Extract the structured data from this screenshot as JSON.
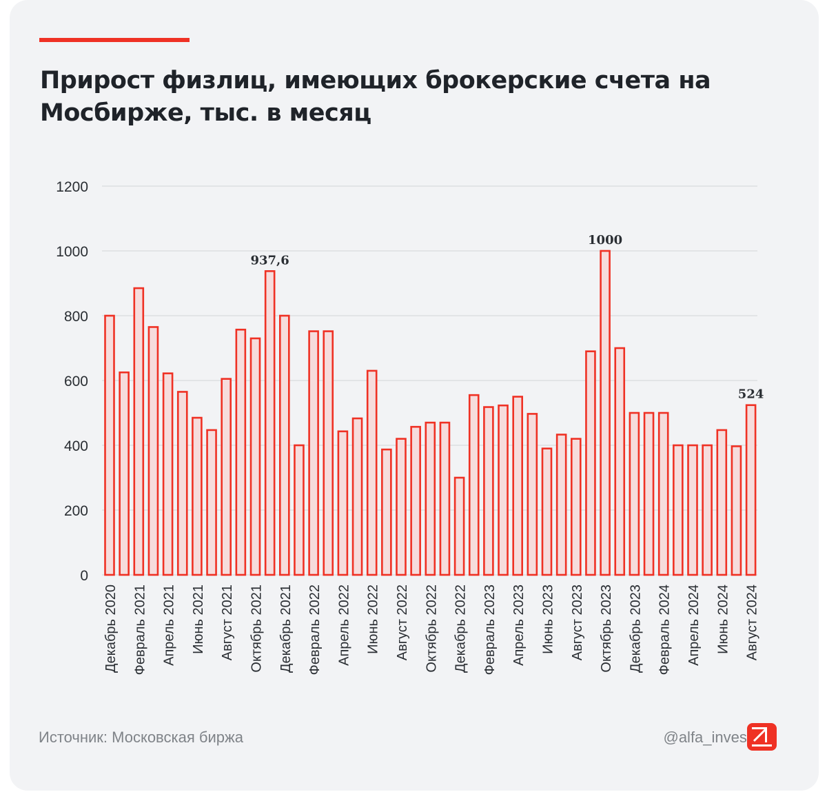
{
  "title": "Прирост физлиц, имеющих брокерские счета на Мосбирже, тыс. в месяц",
  "footer": {
    "source": "Источник: Московская биржа",
    "handle": "@alfa_invest"
  },
  "colors": {
    "accent": "#ef3124",
    "bar_fill": "#f6dcdc",
    "bar_stroke": "#ef3124",
    "grid": "#d9dbde",
    "text": "#1f2329",
    "muted": "#7f8388"
  },
  "icons": {
    "logo": "alfa-arrow-logo-icon"
  },
  "chart_data": {
    "type": "bar",
    "title": "Прирост физлиц, имеющих брокерские счета на Мосбирже, тыс. в месяц",
    "xlabel": "",
    "ylabel": "",
    "ylim": [
      0,
      1200
    ],
    "yticks": [
      0,
      200,
      400,
      600,
      800,
      1000,
      1200
    ],
    "grid": true,
    "categories": [
      "Декабрь 2020",
      "Январь 2021",
      "Февраль 2021",
      "Март 2021",
      "Апрель 2021",
      "Май 2021",
      "Июнь 2021",
      "Июль 2021",
      "Август 2021",
      "Сентябрь 2021",
      "Октябрь 2021",
      "Ноябрь 2021",
      "Декабрь 2021",
      "Январь 2022",
      "Февраль 2022",
      "Март 2022",
      "Апрель 2022",
      "Май 2022",
      "Июнь 2022",
      "Июль 2022",
      "Август 2022",
      "Сентябрь 2022",
      "Октябрь 2022",
      "Ноябрь 2022",
      "Декабрь 2022",
      "Январь 2023",
      "Февраль 2023",
      "Март 2023",
      "Апрель 2023",
      "Май 2023",
      "Июнь 2023",
      "Июль 2023",
      "Август 2023",
      "Сентябрь 2023",
      "Октябрь 2023",
      "Ноябрь 2023",
      "Декабрь 2023",
      "Январь 2024",
      "Февраль 2024",
      "Март 2024",
      "Апрель 2024",
      "Май 2024",
      "Июнь 2024",
      "Июль 2024",
      "Август 2024"
    ],
    "tick_labels": [
      "Декабрь 2020",
      "",
      "Февраль 2021",
      "",
      "Апрель 2021",
      "",
      "Июнь 2021",
      "",
      "Август 2021",
      "",
      "Октябрь 2021",
      "",
      "Декабрь 2021",
      "",
      "Февраль 2022",
      "",
      "Апрель 2022",
      "",
      "Июнь 2022",
      "",
      "Август 2022",
      "",
      "Октябрь 2022",
      "",
      "Декабрь 2022",
      "",
      "Февраль 2023",
      "",
      "Апрель 2023",
      "",
      "Июнь 2023",
      "",
      "Август 2023",
      "",
      "Октябрь 2023",
      "",
      "Декабрь 2023",
      "",
      "Февраль 2024",
      "",
      "Апрель 2024",
      "",
      "Июнь 2024",
      "",
      "Август 2024"
    ],
    "values": [
      800,
      625,
      885,
      765,
      622,
      565,
      485,
      447,
      605,
      757,
      730,
      937.6,
      800,
      400,
      752,
      752,
      443,
      483,
      630,
      387,
      420,
      457,
      470,
      470,
      300,
      555,
      518,
      523,
      550,
      497,
      390,
      433,
      420,
      690,
      1000,
      700,
      500,
      500,
      500,
      400,
      400,
      400,
      447,
      397,
      524
    ],
    "data_labels": [
      {
        "index": 11,
        "text": "937,6"
      },
      {
        "index": 34,
        "text": "1000"
      },
      {
        "index": 44,
        "text": "524"
      }
    ]
  }
}
